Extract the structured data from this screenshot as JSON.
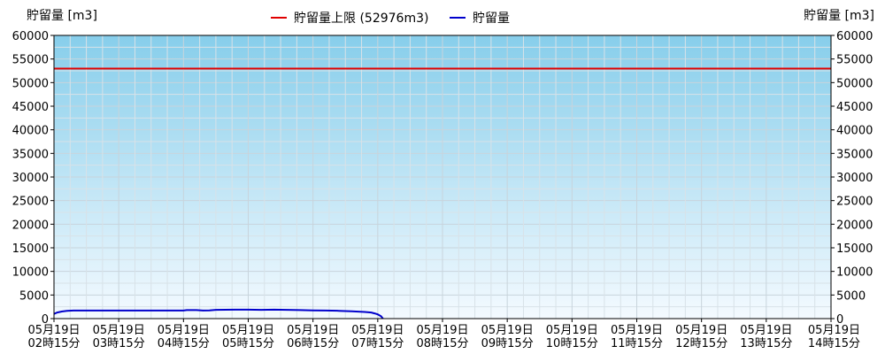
{
  "chart_data": {
    "type": "line",
    "ylabel_left": "貯留量 [m3]",
    "ylabel_right": "貯留量 [m3]",
    "ylim": [
      0,
      60000
    ],
    "yticks": [
      0,
      5000,
      10000,
      15000,
      20000,
      25000,
      30000,
      35000,
      40000,
      45000,
      50000,
      55000,
      60000
    ],
    "x_range": [
      0,
      12
    ],
    "x_ticks": [
      {
        "date": "05月19日",
        "time": "02時15分"
      },
      {
        "date": "05月19日",
        "time": "03時15分"
      },
      {
        "date": "05月19日",
        "time": "04時15分"
      },
      {
        "date": "05月19日",
        "time": "05時15分"
      },
      {
        "date": "05月19日",
        "time": "06時15分"
      },
      {
        "date": "05月19日",
        "time": "07時15分"
      },
      {
        "date": "05月19日",
        "time": "08時15分"
      },
      {
        "date": "05月19日",
        "time": "09時15分"
      },
      {
        "date": "05月19日",
        "time": "10時15分"
      },
      {
        "date": "05月19日",
        "time": "11時15分"
      },
      {
        "date": "05月19日",
        "time": "12時15分"
      },
      {
        "date": "05月19日",
        "time": "13時15分"
      },
      {
        "date": "05月19日",
        "time": "14時15分"
      }
    ],
    "grid": true,
    "legend_position": "top-center",
    "legend": [
      {
        "label": "貯留量上限 (52976m3)",
        "color": "#e00000"
      },
      {
        "label": "貯留量",
        "color": "#0000cc"
      }
    ],
    "limit": {
      "name": "貯留量上限 (52976m3)",
      "value": 52976,
      "color": "#e00000"
    },
    "series": [
      {
        "name": "貯留量",
        "color": "#0000cc",
        "points": [
          [
            0.0,
            1000
          ],
          [
            0.05,
            1300
          ],
          [
            0.12,
            1500
          ],
          [
            0.2,
            1650
          ],
          [
            0.3,
            1700
          ],
          [
            0.5,
            1700
          ],
          [
            1.0,
            1700
          ],
          [
            1.5,
            1700
          ],
          [
            2.0,
            1700
          ],
          [
            2.05,
            1800
          ],
          [
            2.2,
            1800
          ],
          [
            2.3,
            1700
          ],
          [
            2.4,
            1750
          ],
          [
            2.5,
            1850
          ],
          [
            2.8,
            1900
          ],
          [
            3.0,
            1900
          ],
          [
            3.2,
            1850
          ],
          [
            3.4,
            1900
          ],
          [
            3.6,
            1850
          ],
          [
            3.8,
            1800
          ],
          [
            4.0,
            1750
          ],
          [
            4.2,
            1700
          ],
          [
            4.4,
            1650
          ],
          [
            4.6,
            1550
          ],
          [
            4.8,
            1400
          ],
          [
            4.9,
            1300
          ],
          [
            4.95,
            1100
          ],
          [
            5.0,
            900
          ],
          [
            5.05,
            500
          ],
          [
            5.08,
            0
          ]
        ]
      }
    ]
  }
}
